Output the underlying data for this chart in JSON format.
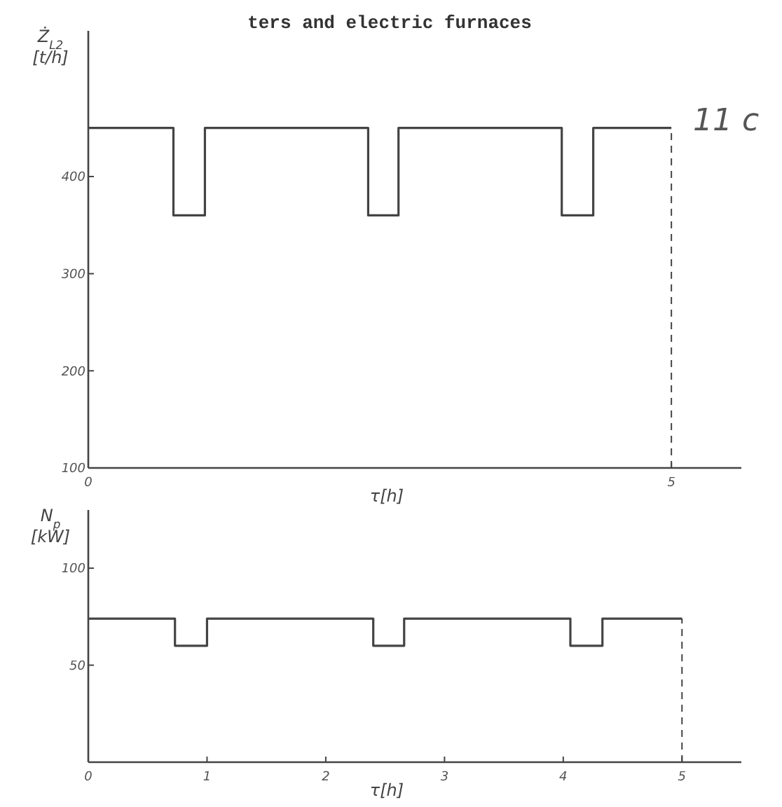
{
  "chart_data": [
    {
      "type": "step",
      "title": "ters and electric furnaces",
      "ylabel": "Ż$_{L2}$ [t/h]",
      "xlabel": "τ[h]",
      "x": [
        0,
        0.73,
        1.0,
        2.4,
        2.66,
        4.06,
        4.33,
        5
      ],
      "values": [
        450,
        360,
        450,
        360,
        450,
        360,
        450,
        450
      ],
      "color": "#444444",
      "xlim": [
        0,
        5.6
      ],
      "xticks": [
        0,
        5
      ],
      "ylim": [
        100,
        550
      ],
      "yticks": [
        100,
        200,
        300,
        400
      ],
      "ref_lines": [
        {
          "axis": "x",
          "value": 5,
          "line_style": "dashed"
        }
      ],
      "annotations": [
        "11 c"
      ],
      "grid": false
    },
    {
      "type": "step",
      "ylabel": "N$_{p}$ [kW]",
      "xlabel": "τ[h]",
      "x": [
        0,
        0.73,
        1.0,
        2.4,
        2.66,
        4.06,
        4.33,
        5
      ],
      "values": [
        74,
        60,
        74,
        60,
        74,
        60,
        74,
        74
      ],
      "color": "#444444",
      "xlim": [
        0,
        5.5
      ],
      "xticks": [
        0,
        1,
        2,
        3,
        4,
        5
      ],
      "ylim": [
        0,
        130
      ],
      "yticks": [
        50,
        100
      ],
      "ref_lines": [
        {
          "axis": "x",
          "value": 5,
          "line_style": "dashed"
        }
      ],
      "grid": false
    }
  ]
}
